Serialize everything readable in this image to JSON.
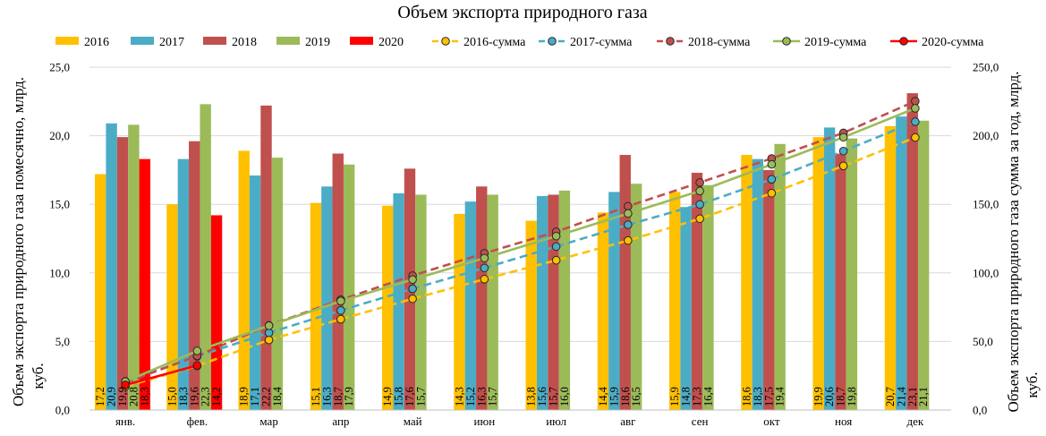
{
  "chart_data": {
    "type": "bar+line",
    "title": "Объем экспорта природного газа",
    "ylabel_left": "Объем экспорта природного газа помесячно, млрд. куб.",
    "ylabel_right": "Объем экспорта природного газа сумма за год, млрд. куб.",
    "ylim_left": [
      0,
      25
    ],
    "ylim_right": [
      0,
      250
    ],
    "yticks_left": [
      "0,0",
      "5,0",
      "10,0",
      "15,0",
      "20,0",
      "25,0"
    ],
    "yticks_right": [
      "0,0",
      "50,0",
      "100,0",
      "150,0",
      "200,0",
      "250,0"
    ],
    "categories": [
      "янв.",
      "фев.",
      "мар",
      "апр",
      "май",
      "июн",
      "июл",
      "авг",
      "сен",
      "окт",
      "ноя",
      "дек"
    ],
    "legend_position": "top",
    "series": [
      {
        "name": "2016",
        "kind": "bar",
        "color": "#FFC000",
        "values": [
          17.2,
          15.0,
          18.9,
          15.1,
          14.9,
          14.3,
          13.8,
          14.4,
          15.9,
          18.6,
          19.9,
          20.7
        ],
        "labels": [
          "17,2",
          "15,0",
          "18,9",
          "15,1",
          "14,9",
          "14,3",
          "13,8",
          "14,4",
          "15,9",
          "18,6",
          "19,9",
          "20,7"
        ]
      },
      {
        "name": "2017",
        "kind": "bar",
        "color": "#4BACC6",
        "values": [
          20.9,
          18.3,
          17.1,
          16.3,
          15.8,
          15.2,
          15.6,
          15.9,
          14.8,
          18.3,
          20.6,
          21.4
        ],
        "labels": [
          "20,9",
          "18,3",
          "17,1",
          "16,3",
          "15,8",
          "15,2",
          "15,6",
          "15,9",
          "14,8",
          "18,3",
          "20,6",
          "21,4"
        ]
      },
      {
        "name": "2018",
        "kind": "bar",
        "color": "#C0504D",
        "values": [
          19.9,
          19.6,
          22.2,
          18.7,
          17.6,
          16.3,
          15.7,
          18.6,
          17.3,
          17.5,
          18.7,
          23.1
        ],
        "labels": [
          "19,9",
          "19,6",
          "22,2",
          "18,7",
          "17,6",
          "16,3",
          "15,7",
          "18,6",
          "17,3",
          "17,5",
          "18,7",
          "23,1"
        ]
      },
      {
        "name": "2019",
        "kind": "bar",
        "color": "#9BBB59",
        "values": [
          20.8,
          22.3,
          18.4,
          17.9,
          15.7,
          15.7,
          16.0,
          16.5,
          16.4,
          19.4,
          19.8,
          21.1
        ],
        "labels": [
          "20,8",
          "22,3",
          "18,4",
          "17,9",
          "15,7",
          "15,7",
          "16,0",
          "16,5",
          "16,4",
          "19,4",
          "19,8",
          "21,1"
        ]
      },
      {
        "name": "2020",
        "kind": "bar",
        "color": "#FF0000",
        "values": [
          18.3,
          14.2,
          null,
          null,
          null,
          null,
          null,
          null,
          null,
          null,
          null,
          null
        ],
        "labels": [
          "18,3",
          "14,2",
          "",
          "",
          "",
          "",
          "",
          "",
          "",
          "",
          "",
          ""
        ]
      },
      {
        "name": "2016-сумма",
        "kind": "line",
        "color": "#FFC000",
        "dash": true,
        "values": [
          17.2,
          32.2,
          51.1,
          66.2,
          81.1,
          95.4,
          109.2,
          123.6,
          139.5,
          158.1,
          178.0,
          198.7
        ]
      },
      {
        "name": "2017-сумма",
        "kind": "line",
        "color": "#4BACC6",
        "dash": true,
        "values": [
          20.9,
          39.2,
          56.3,
          72.6,
          88.4,
          103.6,
          119.2,
          135.1,
          149.9,
          168.2,
          188.8,
          210.2
        ]
      },
      {
        "name": "2018-сумма",
        "kind": "line",
        "color": "#C0504D",
        "dash": true,
        "values": [
          19.9,
          39.5,
          61.7,
          80.4,
          98.0,
          114.3,
          130.0,
          148.6,
          165.9,
          183.4,
          202.1,
          225.2
        ]
      },
      {
        "name": "2019-сумма",
        "kind": "line",
        "color": "#9BBB59",
        "dash": false,
        "values": [
          20.8,
          43.1,
          61.5,
          79.4,
          95.1,
          110.8,
          126.8,
          143.3,
          159.7,
          179.1,
          198.9,
          220.0
        ]
      },
      {
        "name": "2020-сумма",
        "kind": "line",
        "color": "#FF0000",
        "dash": false,
        "values": [
          18.3,
          32.5,
          null,
          null,
          null,
          null,
          null,
          null,
          null,
          null,
          null,
          null
        ]
      }
    ]
  }
}
